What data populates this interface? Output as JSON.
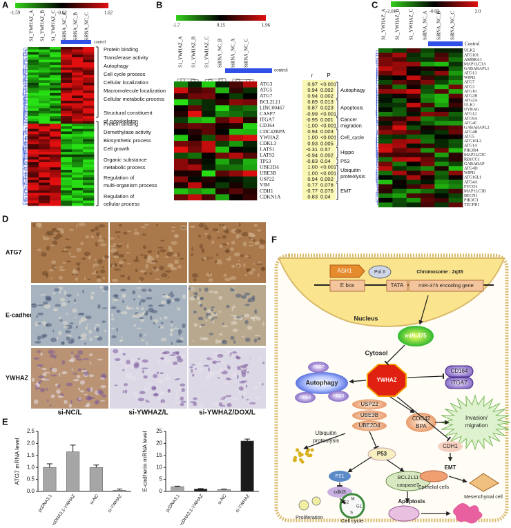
{
  "panel_a": {
    "label": "A",
    "scale_labels": [
      "-1.59",
      "-0.02",
      "1.62"
    ],
    "columns": [
      "S1_YWHAZ_A",
      "S1_YWHAZ_B",
      "S1_YWHAZ_C",
      "SiRNA_NC_A",
      "SiRNA_NC_B",
      "SiRNA_NC_C"
    ],
    "group_label": "control",
    "terms_top": [
      "Protein binding",
      "Transferase activity",
      "Autophagy",
      "Cell cycle process",
      "Cellular localization",
      "Macromolecule localization",
      "Cellular metabolic  process",
      "Structural  constituent",
      "of cytoskeleton"
    ],
    "terms_bottom": [
      "Protein  binding",
      "Demethylase activity",
      "Biosynthetic process",
      "Cell growth",
      "Organic substance",
      "metabolic process",
      "Regulation of",
      "multi-organism process",
      "Regulation of",
      "cellular process"
    ]
  },
  "panel_b": {
    "label": "B",
    "scale_labels": [
      "-1.7",
      "0.15",
      "1.96"
    ],
    "columns": [
      "S1_YWHAZ_A",
      "S1_YWHAZ_B",
      "S1_YWHAZ_C",
      "SiRNA_NC_B",
      "SiRNA_NC_A",
      "SiRNA_NC_C"
    ],
    "group_label": "control",
    "headers": [
      "r",
      "P"
    ],
    "rows": [
      [
        "ATG3",
        "0.97",
        "<0.001"
      ],
      [
        "ATG5",
        "0.94",
        "0.002"
      ],
      [
        "ATG7",
        "0.94",
        "0.002"
      ],
      [
        "BCL2L11",
        "0.89",
        "0.013"
      ],
      [
        "LINC00467",
        "0.87",
        "0.023"
      ],
      [
        "CASP7",
        "-0.99",
        "<0.001"
      ],
      [
        "ITGA7",
        "-0.95",
        "0.001"
      ],
      [
        "CD164",
        "-1.00",
        "<0.001"
      ],
      [
        "CDC42BPA",
        "0.94",
        "0.003"
      ],
      [
        "YWHAZ",
        "1.00",
        "<0.001"
      ],
      [
        "CDKL3",
        "0.93",
        "0.005"
      ],
      [
        "LATS1",
        "-0.31",
        "0.57"
      ],
      [
        "LATS2",
        "-0.94",
        "0.002"
      ],
      [
        "TP53",
        "-0.83",
        "0.04"
      ],
      [
        "UBE2D4",
        "1.00",
        "<0.001"
      ],
      [
        "UBE3B",
        "1.00",
        "<0.001"
      ],
      [
        "USP22",
        "0.94",
        "0.002"
      ],
      [
        "VIM",
        "0.77",
        "0.076"
      ],
      [
        "CDH1",
        "-0.77",
        "0.076"
      ],
      [
        "CDKN1A",
        "0.83",
        "0.04"
      ]
    ],
    "groups": [
      [
        "Autophagy"
      ],
      [
        "Apoptosis"
      ],
      [
        "Cancer",
        "migration"
      ],
      [
        "Cell_cycle"
      ],
      [
        "Hippo"
      ],
      [
        "P53"
      ],
      [
        "Ubiquitin",
        "proteolysis"
      ],
      [
        "EMT"
      ]
    ]
  },
  "panel_c": {
    "label": "C",
    "scale_labels": [
      "-2.01",
      "-0.03",
      "2.0"
    ],
    "columns": [
      "S1_YWHAZ_A",
      "S1_YWHAZ_B",
      "S1_YWHAZ_C",
      "SiRNA_NC_A",
      "SiRNA_NC_B",
      "SiRNA_NC_C"
    ],
    "group_label": "Control",
    "genes": [
      "ULK2",
      "ATG101",
      "AMBRA1",
      "MAP1LC3A",
      "GABARAPL1",
      "ATG13",
      "WIPI2",
      "ATG7",
      "ATG3",
      "ATG10",
      "ATG2B",
      "ATG2A",
      "ULK1",
      "UVRAG",
      "ATG12",
      "ATG9A",
      "ATG4C",
      "GABARAPL2",
      "ATG4B",
      "ATG5",
      "ATG16L2",
      "ATG14",
      "PIK3R4",
      "MAP1LC3C",
      "RB1CC1",
      "GABARAP",
      "ATG4D",
      "WIPI1",
      "ATG16L1",
      "ATG4A",
      "FYCO1",
      "MAP1LC3B",
      "BECN1",
      "PIK3C3",
      "TECPR1"
    ]
  },
  "panel_d": {
    "label": "D",
    "rows": [
      "ATG7",
      "E-cadherin",
      "YWHAZ"
    ],
    "columns": [
      "si-NC/L",
      "si-YWHAZ/L",
      "si-YWHAZ/DOX/L"
    ]
  },
  "panel_e": {
    "label": "E"
  },
  "chart_data": [
    {
      "type": "bar",
      "y_label": "ATG7 mRNA level",
      "categories": [
        "pcDNA3.1",
        "pcDNA3.1-YWHAZ",
        "si-NC",
        "si-YWHAZ"
      ],
      "values": [
        1.0,
        1.65,
        1.0,
        0.05
      ],
      "errors": [
        0.15,
        0.28,
        0.1,
        0.05
      ],
      "colors": [
        "#a6a6a6",
        "#a6a6a6",
        "#a6a6a6",
        "#a6a6a6"
      ],
      "ylim": [
        0,
        2.5
      ],
      "yticks": [
        {
          "value": 0,
          "label": "0.0"
        },
        0.5,
        {
          "value": 1,
          "label": "1.0"
        },
        1.5,
        {
          "value": 2,
          "label": "2.0"
        },
        2.5
      ]
    },
    {
      "type": "bar",
      "y_label": "E-cadherin mRNA level",
      "categories": [
        "pcDNA3.1",
        "pcDNA3.1-YWHAZ",
        "si-NC",
        "si-YWHAZ"
      ],
      "values": [
        2.0,
        1.0,
        0.8,
        21
      ],
      "errors": [
        0.2,
        0.2,
        0.2,
        0.8
      ],
      "colors": [
        "#a6a6a6",
        "#1a1a1a",
        "#a6a6a6",
        "#1a1a1a"
      ],
      "ylim": [
        0,
        25
      ],
      "yticks": [
        0,
        5,
        10,
        15,
        20,
        25
      ]
    }
  ],
  "panel_f": {
    "label": "F",
    "texts": [
      "ASH1",
      "Pol II",
      "Chromosome : 2q35",
      "E box",
      "TATA",
      "miR-375 encoding gene",
      "Nucleus",
      "miR-375",
      "Cytosol",
      "ATG7",
      "Autophagy",
      "ATG3",
      "ATG5",
      "YWHAZ",
      "CD164",
      "ITGA7",
      "Invasion/",
      "migration",
      "USP22",
      "UBE3B",
      "UBE2D4",
      "CDC42",
      "BPA",
      "Ubiquitin",
      "proteolysis",
      "P53",
      "CDH1",
      "EMT",
      "P21",
      "BCL2L11",
      "caspase7",
      "cdkl3",
      "Epithelial cells",
      "Mesenchymal cell",
      "Apoptosis",
      "Proliferation",
      "Cell cycle",
      "G2",
      "M",
      "G1",
      "S"
    ]
  }
}
